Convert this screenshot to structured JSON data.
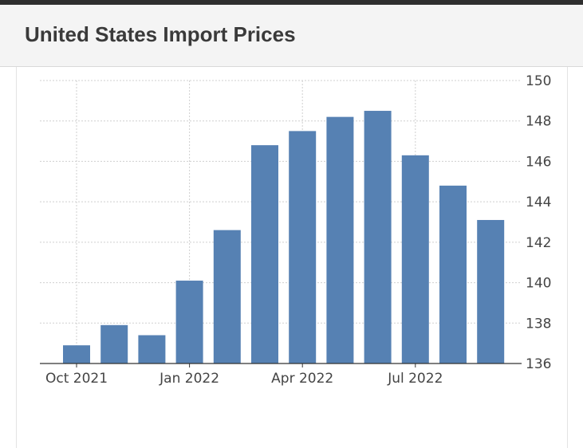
{
  "header": {
    "title": "United States Import Prices"
  },
  "chart_data": {
    "type": "bar",
    "title": "United States Import Prices",
    "xlabel": "",
    "ylabel": "",
    "categories": [
      "Oct 2021",
      "Nov 2021",
      "Dec 2021",
      "Jan 2022",
      "Feb 2022",
      "Mar 2022",
      "Apr 2022",
      "May 2022",
      "Jun 2022",
      "Jul 2022",
      "Aug 2022",
      "Sep 2022"
    ],
    "values": [
      136.9,
      137.9,
      137.4,
      140.1,
      142.6,
      146.8,
      147.5,
      148.2,
      148.5,
      146.3,
      144.8,
      143.1
    ],
    "x_tick_labels": [
      "Oct 2021",
      "Jan 2022",
      "Apr 2022",
      "Jul 2022"
    ],
    "y_ticks": [
      136,
      138,
      140,
      142,
      144,
      146,
      148,
      150
    ],
    "ylim": [
      136,
      150
    ],
    "y_axis_side": "right",
    "grid": true,
    "legend": "none",
    "bar_color": "#5681b3",
    "grid_color": "#cfcfcf"
  }
}
